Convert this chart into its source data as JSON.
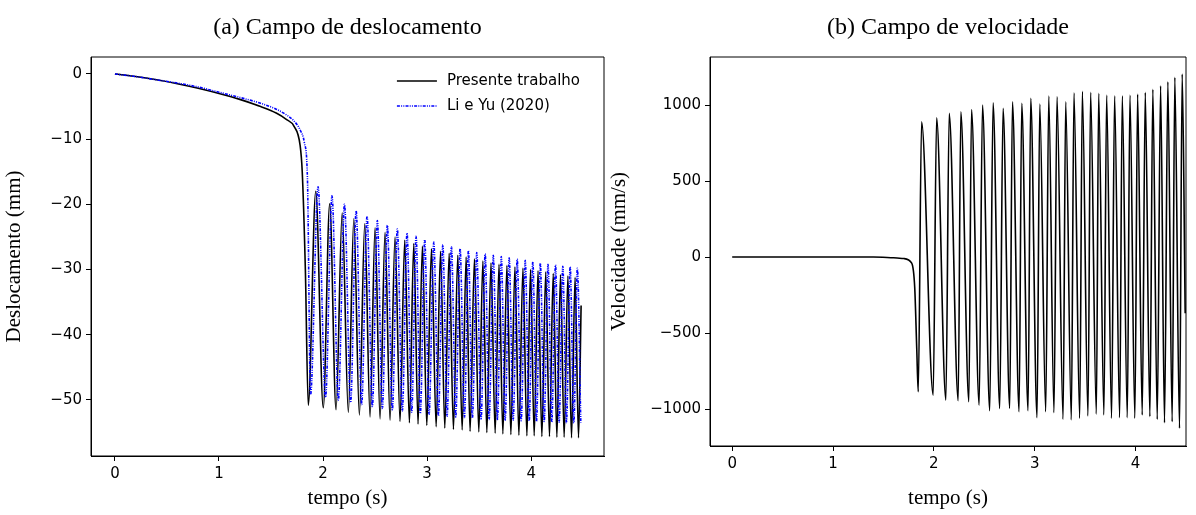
{
  "chart_data": [
    {
      "type": "line",
      "title": "(a) Campo de deslocamento",
      "xlabel": "tempo (s)",
      "ylabel": "Deslocamento (mm)",
      "xlim": [
        -0.23,
        4.7
      ],
      "ylim": [
        -58.6,
        2.6
      ],
      "xticks": [
        0,
        1,
        2,
        3,
        4
      ],
      "yticks": [
        0,
        -10,
        -20,
        -30,
        -40,
        -50
      ],
      "grid": false,
      "legend": "top right",
      "series": [
        {
          "name": "Presente trabalho",
          "color": "#000000",
          "line_style": "solid",
          "x": [
            0,
            0.2,
            0.4,
            0.6,
            0.8,
            1.0,
            1.2,
            1.4,
            1.55,
            1.65,
            1.72,
            1.78,
            1.8,
            1.83,
            1.858,
            1.93,
            2.002,
            2.064,
            2.125,
            2.184,
            2.243,
            2.296,
            2.349,
            2.401,
            2.452,
            2.5,
            2.548,
            2.596,
            2.644,
            2.692,
            2.74,
            2.785,
            2.83,
            2.872,
            2.913,
            2.955,
            2.997,
            3.042,
            3.087,
            3.129,
            3.17,
            3.212,
            3.253,
            3.295,
            3.337,
            3.375,
            3.413,
            3.455,
            3.497,
            3.536,
            3.574,
            3.614,
            3.654,
            3.691,
            3.728,
            3.767,
            3.805,
            3.844,
            3.882,
            3.921,
            3.959,
            3.994,
            4.029,
            4.066,
            4.103,
            4.14,
            4.176,
            4.212,
            4.247,
            4.282,
            4.317,
            4.353,
            4.388,
            4.422,
            4.455,
            4.48
          ],
          "values": [
            0,
            -0.4,
            -0.9,
            -1.5,
            -2.2,
            -3.0,
            -3.9,
            -5.0,
            -6.0,
            -7.0,
            -8.0,
            -11,
            -15,
            -30,
            -50.8,
            -18,
            -51.2,
            -19.9,
            -51.5,
            -21.3,
            -51.9,
            -22.2,
            -52.3,
            -23,
            -52.6,
            -23.6,
            -52.9,
            -24.3,
            -53.1,
            -25,
            -53.3,
            -25.5,
            -53.5,
            -26,
            -53.7,
            -26.4,
            -53.9,
            -26.8,
            -54.1,
            -27.2,
            -54.3,
            -27.5,
            -54.5,
            -27.8,
            -54.6,
            -28.1,
            -54.8,
            -28.4,
            -54.9,
            -28.7,
            -55,
            -29,
            -55.1,
            -29.2,
            -55.2,
            -29.4,
            -55.3,
            -29.6,
            -55.4,
            -29.8,
            -55.5,
            -30,
            -55.5,
            -30.2,
            -55.6,
            -30.4,
            -55.6,
            -30.6,
            -55.7,
            -30.8,
            -55.7,
            -31,
            -55.8,
            -31.2,
            -55.8,
            -35.5
          ]
        },
        {
          "name": "Li e Yu (2020)",
          "color": "#0000ff",
          "line_style": "dashed",
          "x": [
            0,
            0.2,
            0.4,
            0.6,
            0.8,
            1.0,
            1.2,
            1.4,
            1.55,
            1.65,
            1.72,
            1.78,
            1.82,
            1.85,
            1.88,
            1.952,
            2.024,
            2.086,
            2.147,
            2.206,
            2.265,
            2.318,
            2.371,
            2.423,
            2.474,
            2.522,
            2.57,
            2.618,
            2.666,
            2.714,
            2.762,
            2.807,
            2.852,
            2.894,
            2.935,
            2.977,
            3.019,
            3.064,
            3.109,
            3.151,
            3.192,
            3.234,
            3.275,
            3.317,
            3.359,
            3.397,
            3.435,
            3.477,
            3.519,
            3.558,
            3.596,
            3.636,
            3.676,
            3.713,
            3.75,
            3.789,
            3.827,
            3.866,
            3.904,
            3.943,
            3.981,
            4.016,
            4.051,
            4.088,
            4.125,
            4.162,
            4.198,
            4.234,
            4.269,
            4.304,
            4.339,
            4.375,
            4.41,
            4.444,
            4.477
          ],
          "values": [
            0,
            -0.4,
            -0.9,
            -1.4,
            -2.0,
            -2.8,
            -3.6,
            -4.5,
            -5.4,
            -6.3,
            -7.2,
            -8.6,
            -10.5,
            -16,
            -49.2,
            -17.3,
            -49.6,
            -18.7,
            -50,
            -20,
            -50.4,
            -21,
            -50.7,
            -21.8,
            -51,
            -22.5,
            -51.3,
            -23.2,
            -51.5,
            -23.8,
            -51.7,
            -24.4,
            -51.9,
            -24.9,
            -52.1,
            -25.4,
            -52.2,
            -25.8,
            -52.4,
            -26.2,
            -52.5,
            -26.5,
            -52.6,
            -26.8,
            -52.7,
            -27.1,
            -52.8,
            -27.4,
            -52.9,
            -27.6,
            -53,
            -27.8,
            -53,
            -28,
            -53.1,
            -28.2,
            -53.1,
            -28.4,
            -53.2,
            -28.6,
            -53.2,
            -28.8,
            -53.3,
            -29,
            -53.3,
            -29.2,
            -53.4,
            -29.3,
            -53.4,
            -29.5,
            -53.5,
            -29.6,
            -53.5,
            -29.8,
            -53.5
          ]
        }
      ]
    },
    {
      "type": "line",
      "title": "(b) Campo de velocidade",
      "xlabel": "tempo (s)",
      "ylabel": "Velocidade (mm/s)",
      "xlim": [
        -0.22,
        4.5
      ],
      "ylim": [
        -1243,
        1316
      ],
      "xticks": [
        0,
        1,
        2,
        3,
        4
      ],
      "yticks": [
        -1000,
        -500,
        0,
        500,
        1000
      ],
      "grid": false,
      "legend": false,
      "series": [
        {
          "color": "#000000",
          "line_style": "solid",
          "x": [
            0,
            0.2,
            0.4,
            0.6,
            0.8,
            1.0,
            1.2,
            1.4,
            1.6,
            1.7,
            1.78,
            1.81,
            1.83,
            1.845,
            1.878,
            1.993,
            2.027,
            2.119,
            2.152,
            2.241,
            2.267,
            2.347,
            2.373,
            2.449,
            2.482,
            2.554,
            2.587,
            2.653,
            2.686,
            2.752,
            2.779,
            2.845,
            2.871,
            2.934,
            2.96,
            3.023,
            3.05,
            3.109,
            3.139,
            3.191,
            3.221,
            3.281,
            3.307,
            3.363,
            3.389,
            3.446,
            3.472,
            3.528,
            3.554,
            3.611,
            3.634,
            3.686,
            3.713,
            3.762,
            3.792,
            3.842,
            3.868,
            3.918,
            3.944,
            3.993,
            4.02,
            4.066,
            4.096,
            4.142,
            4.171,
            4.215,
            4.248,
            4.287,
            4.32,
            4.363,
            4.389,
            4.436,
            4.462,
            4.492
          ],
          "values": [
            0,
            0,
            0,
            0,
            0,
            0,
            0,
            0,
            -5,
            -10,
            -40,
            -200,
            -600,
            -886,
            890,
            -908,
            916,
            -941,
            945,
            -945,
            956,
            -952,
            971,
            -974,
            1000,
            -1011,
            1015,
            -996,
            978,
            -996,
            1022,
            -1018,
            1011,
            -1011,
            1044,
            -1057,
            1007,
            -1018,
            1059,
            -1024,
            1055,
            -1068,
            1022,
            -1072,
            1081,
            -1061,
            1090,
            -1046,
            1083,
            -1033,
            1077,
            -1039,
            1066,
            -1061,
            1061,
            -1057,
            1061,
            -1057,
            1066,
            -1061,
            1072,
            -1039,
            1083,
            -1050,
            1103,
            -1068,
            1127,
            -1090,
            1153,
            -1083,
            1182,
            -1127,
            1204,
            -370
          ]
        }
      ]
    }
  ]
}
